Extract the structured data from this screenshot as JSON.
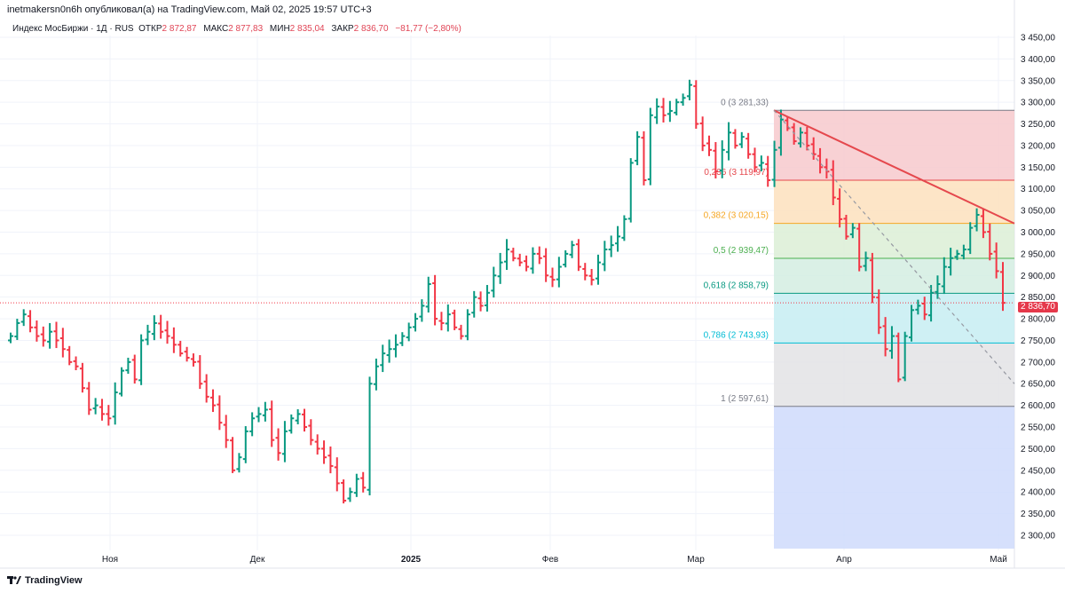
{
  "header": {
    "published": "inetmakersn0n6h опубликовал(а) на TradingView.com, Май 02, 2025 19:57 UTC+3",
    "symbol": "Индекс МосБиржи · 1Д · RUS",
    "open_label": "ОТКР",
    "open": "2 872,87",
    "high_label": "МАКС",
    "high": "2 877,83",
    "low_label": "МИН",
    "low": "2 835,04",
    "close_label": "ЗАКР",
    "close": "2 836,70",
    "change": "−81,77 (−2,80%)"
  },
  "logo": "TradingView",
  "current_price_label": "2 836,70",
  "colors": {
    "up": "#089981",
    "down": "#f23645",
    "trend": "#e5484d"
  },
  "chart_data": {
    "type": "ohlc-bar",
    "title": "Индекс МосБиржи · 1Д",
    "ylim": [
      2275,
      3475
    ],
    "y_ticks": [
      3450,
      3400,
      3350,
      3300,
      3250,
      3200,
      3150,
      3100,
      3050,
      3000,
      2950,
      2900,
      2850,
      2800,
      2750,
      2700,
      2650,
      2600,
      2550,
      2500,
      2450,
      2400,
      2350,
      2300
    ],
    "y_tick_labels": [
      "3 450,00",
      "3 400,00",
      "3 350,00",
      "3 300,00",
      "3 250,00",
      "3 200,00",
      "3 150,00",
      "3 100,00",
      "3 050,00",
      "3 000,00",
      "2 950,00",
      "2 900,00",
      "2 850,00",
      "2 800,00",
      "2 750,00",
      "2 700,00",
      "2 650,00",
      "2 600,00",
      "2 550,00",
      "2 500,00",
      "2 450,00",
      "2 400,00",
      "2 350,00",
      "2 300,00"
    ],
    "x_labels": [
      "Ноя",
      "Дек",
      "2025",
      "Фев",
      "Мар",
      "Апр",
      "Май"
    ],
    "closes": [
      2760,
      2790,
      2810,
      2780,
      2760,
      2750,
      2770,
      2750,
      2730,
      2700,
      2690,
      2640,
      2590,
      2600,
      2580,
      2570,
      2630,
      2680,
      2700,
      2660,
      2750,
      2770,
      2790,
      2770,
      2760,
      2740,
      2720,
      2710,
      2700,
      2650,
      2620,
      2600,
      2560,
      2520,
      2450,
      2480,
      2540,
      2570,
      2580,
      2590,
      2520,
      2490,
      2540,
      2570,
      2580,
      2550,
      2520,
      2500,
      2480,
      2460,
      2420,
      2380,
      2400,
      2430,
      2410,
      2650,
      2690,
      2720,
      2730,
      2740,
      2760,
      2780,
      2800,
      2830,
      2880,
      2800,
      2790,
      2810,
      2780,
      2760,
      2810,
      2850,
      2830,
      2860,
      2900,
      2930,
      2960,
      2940,
      2930,
      2920,
      2950,
      2940,
      2900,
      2890,
      2920,
      2950,
      2970,
      2920,
      2900,
      2890,
      2930,
      2960,
      2970,
      2990,
      3030,
      3160,
      3220,
      3120,
      3270,
      3290,
      3270,
      3280,
      3300,
      3310,
      3340,
      3250,
      3200,
      3190,
      3140,
      3190,
      3230,
      3200,
      3220,
      3180,
      3150,
      3160,
      3120,
      3190,
      3260,
      3240,
      3210,
      3230,
      3200,
      3180,
      3150,
      3140,
      3080,
      3030,
      2990,
      3010,
      2920,
      2940,
      2850,
      2780,
      2730,
      2760,
      2660,
      2760,
      2820,
      2830,
      2810,
      2860,
      2880,
      2920,
      2940,
      2950,
      2960,
      3010,
      3040,
      3000,
      2950,
      2910,
      2836.7
    ],
    "last_price": 2836.7,
    "fibonacci": {
      "high": 3281.33,
      "low": 2597.61,
      "levels": [
        {
          "ratio": 0,
          "label": "0 (3 281,33)",
          "price": 3281.33,
          "color": "#787b86",
          "fill": "#f7c9cd"
        },
        {
          "ratio": 0.236,
          "label": "0,236 (3 119,97)",
          "price": 3119.97,
          "color": "#e5484d",
          "fill": "#fde0bd"
        },
        {
          "ratio": 0.382,
          "label": "0,382 (3 020,15)",
          "price": 3020.15,
          "color": "#f5a623",
          "fill": "#dcefd6"
        },
        {
          "ratio": 0.5,
          "label": "0,5 (2 939,47)",
          "price": 2939.47,
          "color": "#4caf50",
          "fill": "#d3ede2"
        },
        {
          "ratio": 0.618,
          "label": "0,618 (2 858,79)",
          "price": 2858.79,
          "color": "#089981",
          "fill": "#c7edf2"
        },
        {
          "ratio": 0.786,
          "label": "0,786 (2 743,93)",
          "price": 2743.93,
          "color": "#00bcd4",
          "fill": "#e3e3e5"
        },
        {
          "ratio": 1,
          "label": "1 (2 597,61)",
          "price": 2597.61,
          "color": "#787b86",
          "fill": "#cfdbfb"
        }
      ]
    },
    "trendline": {
      "from_price": 3281.33,
      "to_price": 3020
    },
    "dashed_line": {
      "from_price": 3281.33,
      "to_price": 2650
    }
  }
}
